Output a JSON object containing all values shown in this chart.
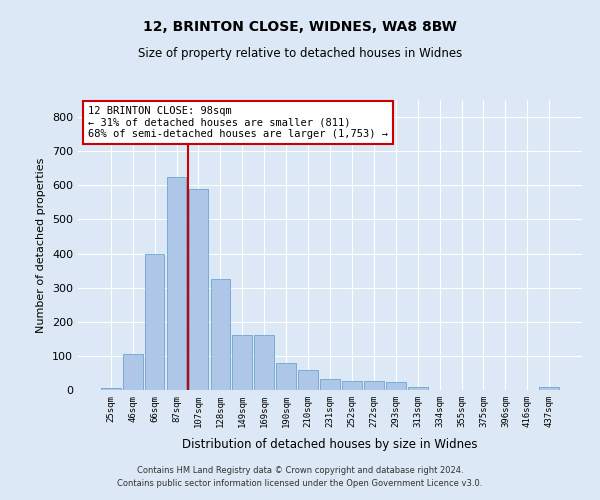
{
  "title": "12, BRINTON CLOSE, WIDNES, WA8 8BW",
  "subtitle": "Size of property relative to detached houses in Widnes",
  "xlabel": "Distribution of detached houses by size in Widnes",
  "ylabel": "Number of detached properties",
  "bin_labels": [
    "25sqm",
    "46sqm",
    "66sqm",
    "87sqm",
    "107sqm",
    "128sqm",
    "149sqm",
    "169sqm",
    "190sqm",
    "210sqm",
    "231sqm",
    "252sqm",
    "272sqm",
    "293sqm",
    "313sqm",
    "334sqm",
    "355sqm",
    "375sqm",
    "396sqm",
    "416sqm",
    "437sqm"
  ],
  "bar_values": [
    5,
    105,
    400,
    625,
    590,
    325,
    160,
    160,
    80,
    60,
    32,
    26,
    25,
    22,
    10,
    0,
    0,
    0,
    0,
    0,
    10
  ],
  "bar_color": "#aec6e8",
  "bar_edge_color": "#5a9cc5",
  "property_line_color": "#cc0000",
  "annotation_text": "12 BRINTON CLOSE: 98sqm\n← 31% of detached houses are smaller (811)\n68% of semi-detached houses are larger (1,753) →",
  "annotation_box_color": "#ffffff",
  "annotation_box_edge": "#cc0000",
  "ylim": [
    0,
    850
  ],
  "yticks": [
    0,
    100,
    200,
    300,
    400,
    500,
    600,
    700,
    800
  ],
  "footer_line1": "Contains HM Land Registry data © Crown copyright and database right 2024.",
  "footer_line2": "Contains public sector information licensed under the Open Government Licence v3.0.",
  "background_color": "#dce8f5",
  "axes_background": "#dce8f5"
}
